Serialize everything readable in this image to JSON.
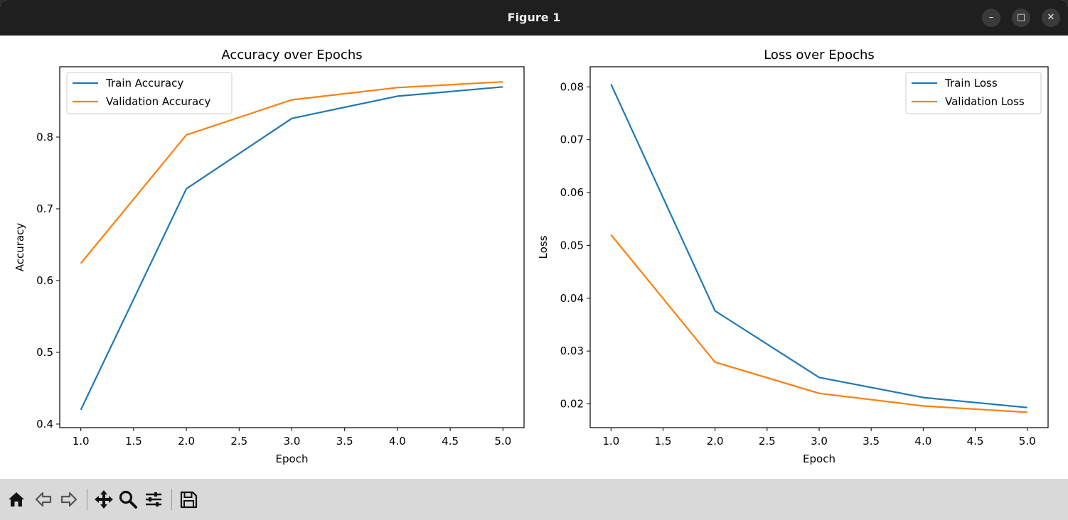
{
  "window": {
    "title": "Figure 1",
    "controls": [
      "minimize",
      "maximize",
      "close"
    ]
  },
  "toolbar": {
    "tools": [
      {
        "name": "home-icon"
      },
      {
        "name": "back-arrow-icon"
      },
      {
        "name": "forward-arrow-icon"
      },
      {
        "name": "pan-move-icon"
      },
      {
        "name": "zoom-magnifier-icon"
      },
      {
        "name": "configure-subplots-icon"
      },
      {
        "name": "save-icon"
      }
    ]
  },
  "colors": {
    "train": "#1f77b4",
    "validation": "#ff7f0e"
  },
  "chart_data": [
    {
      "type": "line",
      "title": "Accuracy over Epochs",
      "xlabel": "Epoch",
      "ylabel": "Accuracy",
      "xlim": [
        0.8,
        5.2
      ],
      "ylim": [
        0.395,
        0.898
      ],
      "xticks": [
        "1.0",
        "1.5",
        "2.0",
        "2.5",
        "3.0",
        "3.5",
        "4.0",
        "4.5",
        "5.0"
      ],
      "yticks": [
        "0.4",
        "0.5",
        "0.6",
        "0.7",
        "0.8"
      ],
      "legend": "upper-left",
      "grid": false,
      "x": [
        1,
        2,
        3,
        4,
        5
      ],
      "series": [
        {
          "name": "Train Accuracy",
          "values": [
            0.42,
            0.728,
            0.826,
            0.857,
            0.87
          ]
        },
        {
          "name": "Validation Accuracy",
          "values": [
            0.624,
            0.803,
            0.852,
            0.869,
            0.877
          ]
        }
      ]
    },
    {
      "type": "line",
      "title": "Loss over Epochs",
      "xlabel": "Epoch",
      "ylabel": "Loss",
      "xlim": [
        0.8,
        5.2
      ],
      "ylim": [
        0.0155,
        0.0838
      ],
      "xticks": [
        "1.0",
        "1.5",
        "2.0",
        "2.5",
        "3.0",
        "3.5",
        "4.0",
        "4.5",
        "5.0"
      ],
      "yticks": [
        "0.02",
        "0.03",
        "0.04",
        "0.05",
        "0.06",
        "0.07",
        "0.08"
      ],
      "legend": "upper-right",
      "grid": false,
      "x": [
        1,
        2,
        3,
        4,
        5
      ],
      "series": [
        {
          "name": "Train Loss",
          "values": [
            0.0805,
            0.0376,
            0.025,
            0.0212,
            0.0193
          ]
        },
        {
          "name": "Validation Loss",
          "values": [
            0.052,
            0.0279,
            0.022,
            0.0196,
            0.0184
          ]
        }
      ]
    }
  ]
}
